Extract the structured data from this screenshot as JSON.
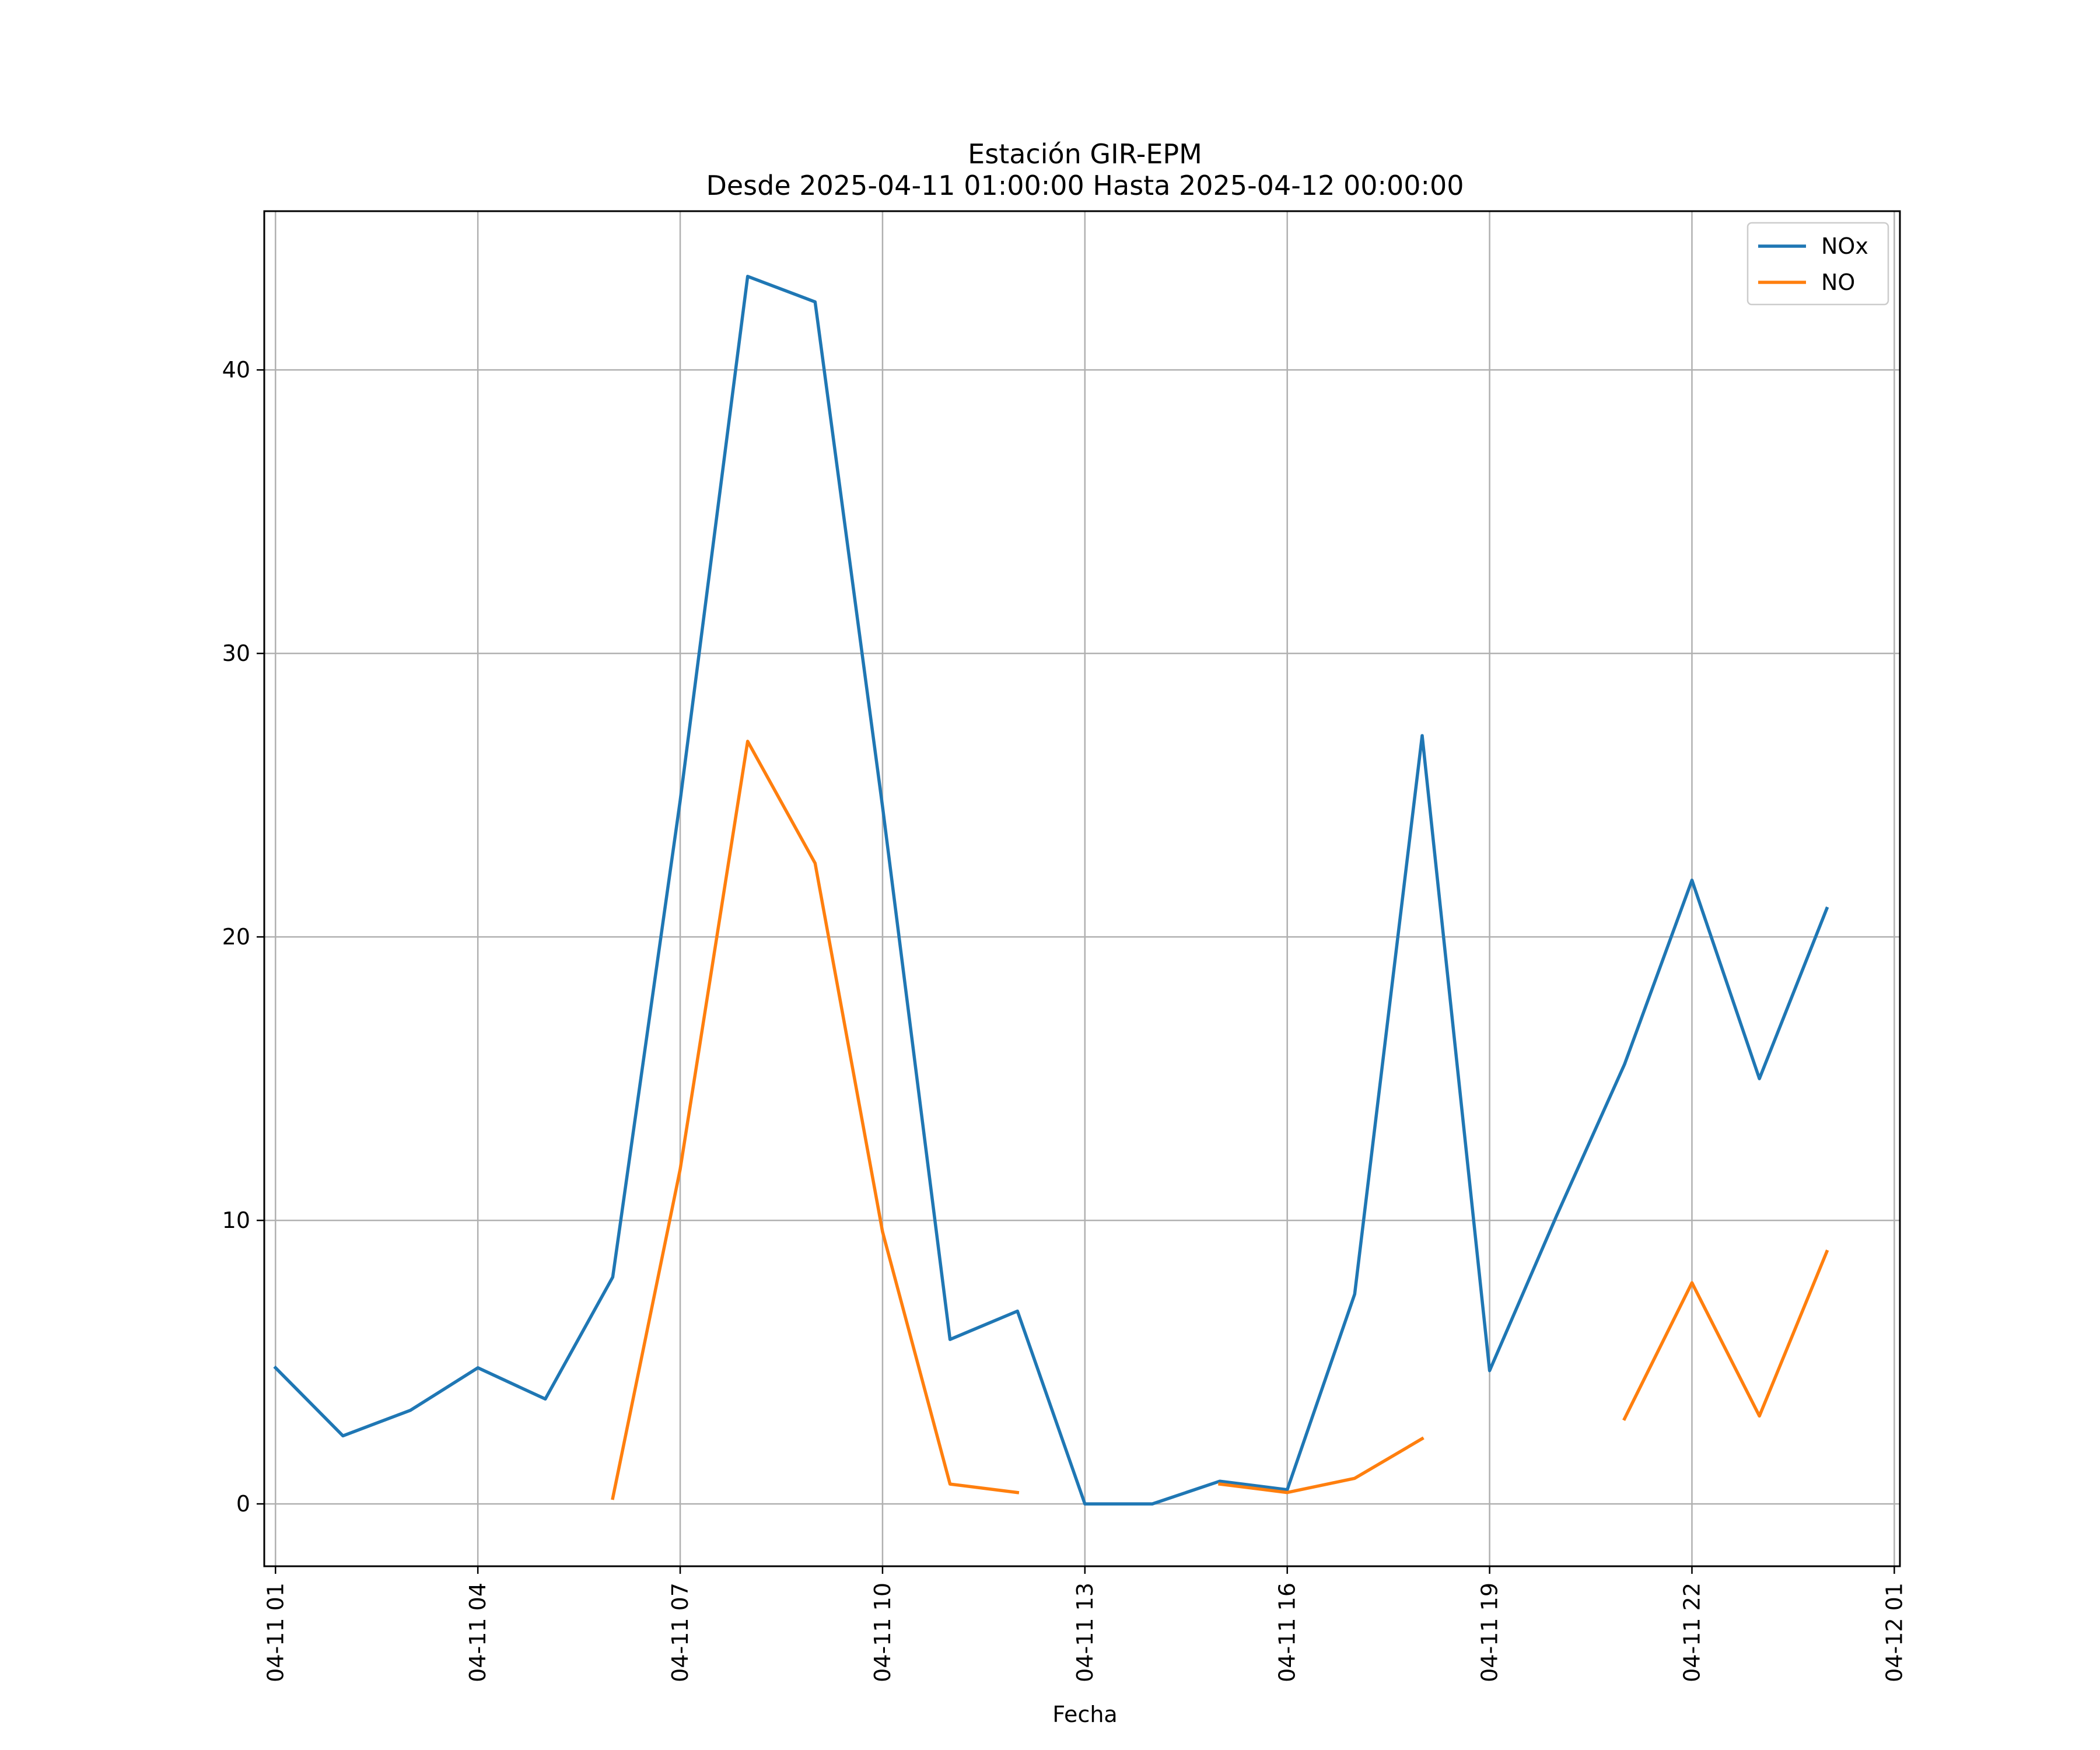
{
  "chart_data": {
    "type": "line",
    "title": "Estación GIR-EPM",
    "subtitle": "Desde 2025-04-11 01:00:00 Hasta 2025-04-12 00:00:00",
    "xlabel": "Fecha",
    "ylabel": "",
    "x": [
      "04-11 01",
      "04-11 02",
      "04-11 03",
      "04-11 04",
      "04-11 05",
      "04-11 06",
      "04-11 07",
      "04-11 08",
      "04-11 09",
      "04-11 10",
      "04-11 11",
      "04-11 12",
      "04-11 13",
      "04-11 14",
      "04-11 15",
      "04-11 16",
      "04-11 17",
      "04-11 18",
      "04-11 19",
      "04-11 20",
      "04-11 21",
      "04-11 22",
      "04-11 23",
      "04-12 00"
    ],
    "x_ticks": [
      "04-11 01",
      "04-11 04",
      "04-11 07",
      "04-11 10",
      "04-11 13",
      "04-11 16",
      "04-11 19",
      "04-11 22",
      "04-12 01"
    ],
    "y_ticks": [
      0,
      10,
      20,
      30,
      40
    ],
    "xlim": [
      "04-11 00:50",
      "04-12 01:05"
    ],
    "ylim": [
      -2.2,
      45.6
    ],
    "grid": true,
    "legend_position": "top-right",
    "series": [
      {
        "name": "NOx",
        "color": "#1f77b4",
        "values": [
          4.8,
          2.4,
          3.3,
          4.8,
          3.7,
          8.0,
          24.8,
          43.3,
          42.4,
          24.6,
          5.8,
          6.8,
          0.0,
          0.0,
          0.8,
          0.5,
          7.4,
          27.1,
          4.7,
          10.2,
          15.5,
          22.0,
          15.0,
          21.0
        ]
      },
      {
        "name": "NO",
        "color": "#ff7f0e",
        "values": [
          null,
          null,
          null,
          null,
          null,
          0.2,
          11.8,
          26.9,
          22.6,
          9.6,
          0.7,
          0.4,
          null,
          null,
          0.7,
          0.4,
          0.9,
          2.3,
          null,
          null,
          3.0,
          7.8,
          3.1,
          8.9
        ]
      }
    ]
  }
}
